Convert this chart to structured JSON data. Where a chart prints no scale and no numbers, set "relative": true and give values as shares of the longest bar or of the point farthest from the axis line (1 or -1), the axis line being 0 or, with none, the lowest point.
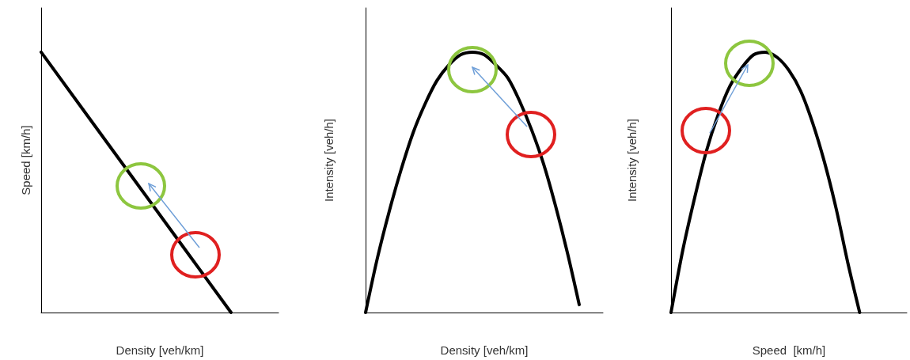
{
  "chart_data": [
    {
      "type": "line",
      "relative": true,
      "xlabel": "Density [veh/km]",
      "ylabel": "Speed [km/h]",
      "categories": [
        null,
        null,
        null,
        null,
        null,
        null
      ],
      "color": "#000000",
      "marker": "none",
      "values": [
        1,
        0.75,
        0.5,
        0.25,
        0,
        null
      ]
    },
    {
      "type": "line",
      "relative": true,
      "xlabel": "Density [veh/km]",
      "ylabel": "Intensity [veh/h]",
      "categories": [
        null,
        null,
        null,
        null,
        null,
        null,
        null,
        null,
        null,
        null,
        null,
        null,
        null,
        null,
        null,
        null,
        null,
        null,
        null,
        null,
        null
      ],
      "color": "#000000",
      "marker": "none",
      "values": [
        0,
        0.21,
        0.39,
        0.55,
        0.69,
        0.8,
        0.89,
        0.95,
        0.99,
        1,
        0.99,
        0.95,
        0.9,
        0.81,
        0.7,
        0.57,
        0.41,
        0.23,
        0.03,
        null,
        null
      ]
    },
    {
      "type": "line",
      "relative": true,
      "xlabel": "Speed  [km/h]",
      "ylabel": "Intensity [veh/h]",
      "categories": [
        null,
        null,
        null,
        null,
        null,
        null,
        null,
        null,
        null,
        null,
        null,
        null,
        null,
        null,
        null,
        null,
        null,
        null,
        null,
        null,
        null
      ],
      "color": "#000000",
      "marker": "none",
      "values": [
        0,
        0.24,
        0.44,
        0.62,
        0.76,
        0.87,
        0.94,
        0.99,
        1,
        0.98,
        0.93,
        0.85,
        0.73,
        0.58,
        0.4,
        0.19,
        0,
        null,
        null,
        null,
        null
      ]
    }
  ]
}
